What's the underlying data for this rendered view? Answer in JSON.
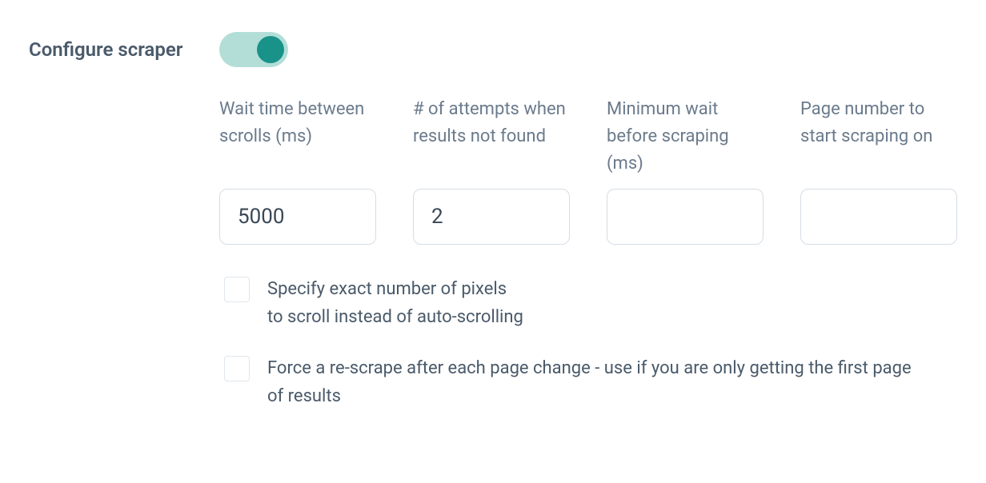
{
  "section": {
    "title": "Configure scraper"
  },
  "toggle": {
    "enabled": true
  },
  "fields": {
    "wait_between_scrolls": {
      "label": "Wait time between scrolls (ms)",
      "value": "5000"
    },
    "attempts": {
      "label": "# of attempts when results not found",
      "value": "2"
    },
    "min_wait": {
      "label": "Minimum wait before scraping (ms)",
      "value": ""
    },
    "start_page": {
      "label": "Page number to start scraping on",
      "value": ""
    }
  },
  "checkboxes": {
    "pixel_scroll": {
      "label": "Specify exact number of pixels to scroll instead of auto-scrolling",
      "checked": false
    },
    "force_rescrape": {
      "label": "Force a re-scrape after each page change - use if you are only getting the first page of results",
      "checked": false
    }
  },
  "colors": {
    "toggle_track_on": "#b3ded8",
    "toggle_knob_on": "#199289",
    "border": "#d5dde4",
    "text_primary": "#4a5a6a",
    "text_secondary": "#6b7b8c"
  }
}
